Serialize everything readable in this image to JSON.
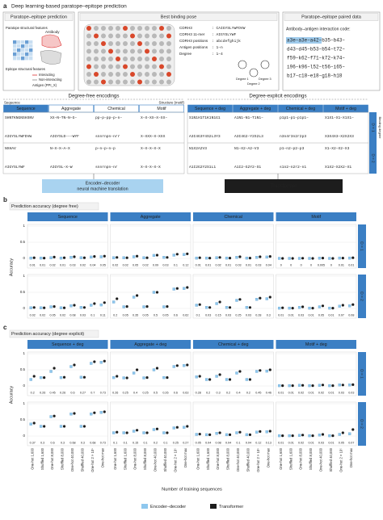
{
  "panel_a": {
    "label": "a",
    "title": "Deep learning-based paratope–epitope prediction",
    "box1": {
      "title": "Paratope–epitope prediction",
      "paratope": "Paratope structural features",
      "antibody": "Antibody",
      "epitope": "Epitope structural features",
      "interacting": "Interacting",
      "noninteracting": "Non-interacting",
      "antigen": "Antigen (PPI_X)"
    },
    "box2": {
      "title": "Best binding pose",
      "fields": [
        {
          "k": "CDRH3",
          "v": ": CAIGYSLYWFDVW"
        },
        {
          "k": "CDRH3 11-mer",
          "v": ": AIGYSLYWF"
        },
        {
          "k": "CDRH3 positions",
          "v": ": abcdefghijk"
        },
        {
          "k": "Antigen positions",
          "v": ": 1–n"
        },
        {
          "k": "Degree",
          "v": ": 1–4"
        }
      ],
      "degrees": [
        "Degree 1",
        "Degree 2",
        "Degree 3"
      ]
    },
    "box3": {
      "title": "Paratope–epitope paired data",
      "caption": "Antibody–antigen interaction code:",
      "code": [
        "a3e–a3e–a42–b35–b43–",
        "d43–d45–b53–b54–t72–",
        "f59–k62–f71–k72–k74–",
        "i96–k96–l52–t56–i65–",
        "b17–c18–e18–g18–h18"
      ]
    },
    "free": {
      "heading": "Degree-free encodings",
      "left_label": "Sequence",
      "right_label": "Structure (motif)",
      "columns": [
        "Sequence",
        "Aggregate",
        "Chemical",
        "Motif"
      ],
      "rows": [
        [
          "SHNTKNGNSHSNV",
          "XX–N–TN–N–G–",
          "pp–p–pp–p–n–",
          "X–X–XX–X–XX–"
        ],
        [
          "AIGYSLYWFDVW",
          "AIGYSLD–––WYF",
          "snnrnpn–nrr",
          "X–XXX–X–XXX"
        ],
        [
          "NXHAV",
          "N–X–X–A–X",
          "p–n–p–n–p",
          "X–X–X–X–X"
        ],
        [
          "AIGYSLYWF",
          "AIGYSL–X–W",
          "snnrnpn–nr",
          "X–X–X–X–X"
        ]
      ]
    },
    "explicit": {
      "heading": "Degree-explicit encodings",
      "columns": [
        "Sequence + deg",
        "Aggregate + deg",
        "Chemical + deg",
        "Motif + deg"
      ],
      "rows": [
        [
          "S1N1H1T1K1N1G1",
          "A1N1–N1–T1N1–",
          "p1p1–p1–p1p1–",
          "X1X1–X1–X1X1–"
        ],
        [
          "A3I4G3Y4S2L3Y3",
          "A3I4G2–Y2S2L3",
          "n3n4r3n2r2p3",
          "X3X4X3–X2X2X3"
        ],
        [
          "N1X2A2V3",
          "N1–X2–A2–V3",
          "p1–n2–p2–p3",
          "X1–X2–X2–X3"
        ],
        [
          "A1I2G2Y2S1L1",
          "A1I2–G2Y2–S1",
          "s1n2–n2r2–n1",
          "X1X2–X2X2–X1"
        ]
      ],
      "side": [
        "D = 1",
        "D = 2"
      ],
      "axis": "Binding degree"
    },
    "encoder": [
      "Encoder–decoder",
      "neural machine translation"
    ],
    "transformer": "Transformer"
  },
  "chart_data": [
    {
      "type": "dot",
      "label": "b",
      "title": "Prediction accuracy (degree free)",
      "ylabel": "Accuracy",
      "columns": [
        "Sequence",
        "Aggregate",
        "Chemical",
        "Motif"
      ],
      "rows": [
        "D = 1",
        "D = 2"
      ],
      "series_colors": [
        "#8ec7ee",
        "#1d1d1d"
      ],
      "ylim": [
        -0.05,
        1.05
      ],
      "yticks": [
        0,
        0.5,
        1
      ],
      "grid": true,
      "panels": [
        {
          "series": [
            {
              "values": [
                0.01,
                0.01,
                0.02,
                0.01,
                0.03,
                0.02,
                0.04,
                0.05
              ]
            },
            {
              "values": [
                0.02,
                0.01,
                0.04,
                0.02,
                0.05,
                0.02,
                0.06,
                0.07
              ]
            }
          ]
        },
        {
          "series": [
            {
              "values": [
                0.02,
                0.02,
                0.05,
                0.02,
                0.09,
                0.03,
                0.1,
                0.12
              ]
            },
            {
              "values": [
                0.03,
                0.02,
                0.07,
                0.02,
                0.1,
                0.03,
                0.13,
                0.14
              ]
            }
          ]
        },
        {
          "series": [
            {
              "values": [
                0.01,
                0.01,
                0.02,
                0.01,
                0.03,
                0.01,
                0.03,
                0.04
              ]
            },
            {
              "values": [
                0.02,
                0.01,
                0.03,
                0.01,
                0.05,
                0.01,
                0.05,
                0.06
              ]
            }
          ]
        },
        {
          "series": [
            {
              "values": [
                0,
                0,
                0,
                0,
                0.005,
                0,
                0.01,
                0.01
              ]
            },
            {
              "values": [
                0,
                0,
                0.005,
                0,
                0.01,
                0,
                0.01,
                0.02
              ]
            }
          ]
        },
        {
          "series": [
            {
              "values": [
                0.02,
                0.02,
                0.05,
                0.02,
                0.08,
                0.03,
                0.1,
                0.11
              ]
            },
            {
              "values": [
                0.03,
                0.02,
                0.06,
                0.02,
                0.1,
                0.03,
                0.15,
                0.18
              ]
            }
          ]
        },
        {
          "series": [
            {
              "values": [
                0.2,
                0.05,
                0.35,
                0.05,
                0.5,
                0.05,
                0.6,
                0.62
              ]
            },
            {
              "values": [
                0.3,
                0.06,
                0.4,
                0.06,
                0.5,
                0.06,
                0.62,
                0.65
              ]
            }
          ]
        },
        {
          "series": [
            {
              "values": [
                0.1,
                0.03,
                0.15,
                0.03,
                0.25,
                0.03,
                0.28,
                0.3
              ]
            },
            {
              "values": [
                0.12,
                0.03,
                0.2,
                0.03,
                0.28,
                0.03,
                0.32,
                0.35
              ]
            }
          ]
        },
        {
          "series": [
            {
              "values": [
                0.01,
                0.01,
                0.03,
                0.01,
                0.05,
                0.01,
                0.07,
                0.08
              ]
            },
            {
              "values": [
                0.02,
                0.01,
                0.05,
                0.01,
                0.08,
                0.01,
                0.1,
                0.12
              ]
            }
          ]
        }
      ]
    },
    {
      "type": "dot",
      "label": "c",
      "title": "Prediction accuracy (degree explicit)",
      "ylabel": "Accuracy",
      "columns": [
        "Sequence + deg",
        "Aggregate + deg",
        "Chemical + deg",
        "Motif + deg"
      ],
      "rows": [
        "D = 1",
        "D = 2"
      ],
      "categories": [
        "One-hot 1,600",
        "Shuffled 1,600",
        "One-hot 8,000",
        "Shuffled 8,000",
        "One-hot 40,000",
        "Shuffled 40,000",
        "One-hot 2 × 10⁵",
        "One-hot max"
      ],
      "xlabel": "Number of training sequences",
      "series": [
        {
          "name": "Encoder–decoder",
          "color": "#8ec7ee"
        },
        {
          "name": "Transformer",
          "color": "#1d1d1d"
        }
      ],
      "ylim": [
        -0.05,
        1.05
      ],
      "yticks": [
        0,
        0.5,
        1
      ],
      "grid": true,
      "panels": [
        {
          "series": [
            {
              "values": [
                0.2,
                0.26,
                0.45,
                0.26,
                0.6,
                0.27,
                0.7,
                0.73
              ]
            },
            {
              "values": [
                0.3,
                0.26,
                0.55,
                0.27,
                0.65,
                0.27,
                0.75,
                0.77
              ]
            }
          ]
        },
        {
          "series": [
            {
              "values": [
                0.26,
                0.25,
                0.4,
                0.25,
                0.5,
                0.26,
                0.6,
                0.63
              ]
            },
            {
              "values": [
                0.3,
                0.25,
                0.5,
                0.26,
                0.55,
                0.26,
                0.63,
                0.65
              ]
            }
          ]
        },
        {
          "series": [
            {
              "values": [
                0.28,
                0.2,
                0.3,
                0.2,
                0.4,
                0.2,
                0.45,
                0.46
              ]
            },
            {
              "values": [
                0.3,
                0.2,
                0.35,
                0.2,
                0.45,
                0.2,
                0.48,
                0.5
              ]
            }
          ]
        },
        {
          "series": [
            {
              "values": [
                0.01,
                0.01,
                0.02,
                0.01,
                0.02,
                0.01,
                0.03,
                0.03
              ]
            },
            {
              "values": [
                0.01,
                0.01,
                0.02,
                0.01,
                0.03,
                0.01,
                0.03,
                0.04
              ]
            }
          ]
        },
        {
          "series": [
            {
              "values": [
                0.37,
                0.3,
                0.6,
                0.3,
                0.68,
                0.3,
                0.68,
                0.73
              ]
            },
            {
              "values": [
                0.4,
                0.3,
                0.62,
                0.3,
                0.7,
                0.3,
                0.72,
                0.75
              ]
            }
          ]
        },
        {
          "series": [
            {
              "values": [
                0.1,
                0.1,
                0.15,
                0.1,
                0.2,
                0.1,
                0.25,
                0.27
              ]
            },
            {
              "values": [
                0.12,
                0.1,
                0.18,
                0.1,
                0.22,
                0.1,
                0.27,
                0.3
              ]
            }
          ]
        },
        {
          "series": [
            {
              "values": [
                0.05,
                0.04,
                0.08,
                0.04,
                0.1,
                0.04,
                0.12,
                0.13
              ]
            },
            {
              "values": [
                0.06,
                0.04,
                0.1,
                0.04,
                0.12,
                0.04,
                0.14,
                0.15
              ]
            }
          ]
        },
        {
          "series": [
            {
              "values": [
                0.01,
                0.01,
                0.02,
                0.01,
                0.03,
                0.01,
                0.05,
                0.07
              ]
            },
            {
              "values": [
                0.01,
                0.01,
                0.03,
                0.01,
                0.05,
                0.01,
                0.1,
                0.2
              ]
            }
          ]
        }
      ]
    }
  ]
}
